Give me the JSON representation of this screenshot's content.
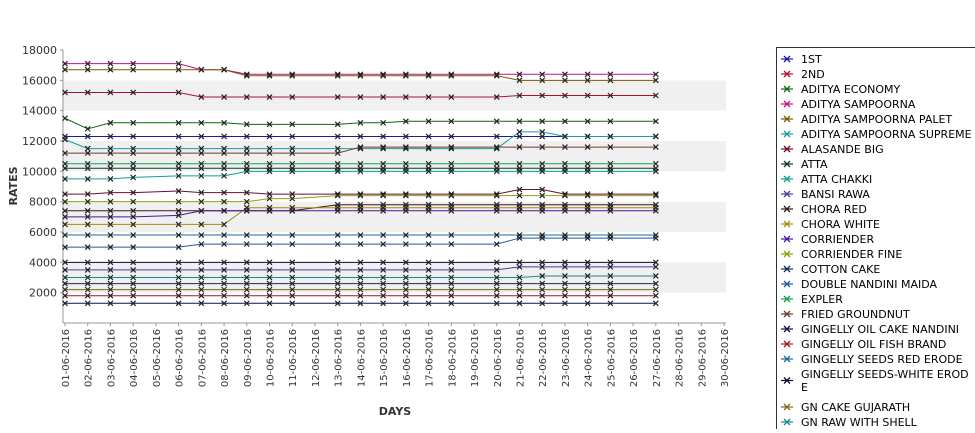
{
  "chart_data": {
    "type": "line",
    "title": "",
    "xlabel": "DAYS",
    "ylabel": "RATES",
    "ylim": [
      0,
      18000
    ],
    "yticks": [
      2000,
      4000,
      6000,
      8000,
      10000,
      12000,
      14000,
      16000,
      18000
    ],
    "grid": "alternating horizontal bands",
    "legend_position": "right",
    "x": [
      "01-06-2016",
      "02-06-2016",
      "03-06-2016",
      "04-06-2016",
      "05-06-2016",
      "06-06-2016",
      "07-06-2016",
      "08-06-2016",
      "09-06-2016",
      "10-06-2016",
      "11-06-2016",
      "12-06-2016",
      "13-06-2016",
      "14-06-2016",
      "15-06-2016",
      "16-06-2016",
      "17-06-2016",
      "18-06-2016",
      "19-06-2016",
      "20-06-2016",
      "21-06-2016",
      "22-06-2016",
      "23-06-2016",
      "24-06-2016",
      "25-06-2016",
      "26-06-2016",
      "27-06-2016",
      "28-06-2016",
      "29-06-2016",
      "30-06-2016"
    ],
    "series": [
      {
        "name": "1ST",
        "color": "#1a1aa8",
        "values": [
          12300,
          12300,
          12300,
          12300,
          null,
          12300,
          12300,
          12300,
          12300,
          12300,
          12300,
          null,
          12300,
          12300,
          12300,
          12300,
          12300,
          12300,
          null,
          12300,
          12300,
          12300,
          12300,
          12300,
          12300,
          null,
          12300,
          null,
          null,
          null
        ]
      },
      {
        "name": "2ND",
        "color": "#b01030",
        "values": [
          15200,
          15200,
          15200,
          15200,
          null,
          15200,
          14900,
          14900,
          14900,
          14900,
          14900,
          null,
          14900,
          14900,
          14900,
          14900,
          14900,
          14900,
          null,
          14900,
          15000,
          15000,
          15000,
          15000,
          15000,
          null,
          15000,
          null,
          null,
          null
        ]
      },
      {
        "name": "ADITYA ECONOMY",
        "color": "#0a6a0a",
        "values": [
          13500,
          12800,
          13200,
          13200,
          null,
          13200,
          13200,
          13200,
          13100,
          13100,
          13100,
          null,
          13100,
          13200,
          13200,
          13300,
          13300,
          13300,
          null,
          13300,
          13300,
          13300,
          13300,
          13300,
          13300,
          null,
          13300,
          null,
          null,
          null
        ]
      },
      {
        "name": "ADITYA SAMPOORNA",
        "color": "#c0108c",
        "values": [
          17100,
          17100,
          17100,
          17100,
          null,
          17100,
          16700,
          16700,
          16400,
          16400,
          16400,
          null,
          16400,
          16400,
          16400,
          16400,
          16400,
          16400,
          null,
          16400,
          16400,
          16400,
          16400,
          16400,
          16400,
          null,
          16400,
          null,
          null,
          null
        ]
      },
      {
        "name": "ADITYA SAMPOORNA PALET",
        "color": "#7a5a00",
        "values": [
          16700,
          16700,
          16700,
          16700,
          null,
          16700,
          16700,
          16700,
          16300,
          16300,
          16300,
          null,
          16300,
          16300,
          16300,
          16300,
          16300,
          16300,
          null,
          16300,
          16000,
          16000,
          16000,
          16000,
          16000,
          null,
          16000,
          null,
          null,
          null
        ]
      },
      {
        "name": "ADITYA SAMPOORNA SUPREME",
        "color": "#1e9aa0",
        "values": [
          12100,
          11500,
          11500,
          11500,
          null,
          11500,
          11500,
          11500,
          11500,
          11500,
          11500,
          null,
          11500,
          11500,
          11500,
          11500,
          11500,
          11500,
          null,
          11500,
          12600,
          12600,
          12300,
          12300,
          12300,
          null,
          12300,
          null,
          null,
          null
        ]
      },
      {
        "name": "ALASANDE BIG",
        "color": "#6a0a3a",
        "values": [
          8500,
          8500,
          8600,
          8600,
          null,
          8700,
          8600,
          8600,
          8600,
          8500,
          8500,
          null,
          8500,
          8500,
          8500,
          8500,
          8500,
          8500,
          null,
          8500,
          8800,
          8800,
          8500,
          8500,
          8500,
          null,
          8500,
          null,
          null,
          null
        ]
      },
      {
        "name": "ATTA",
        "color": "#0a3a2a",
        "values": [
          10200,
          10200,
          10200,
          10200,
          null,
          10200,
          10200,
          10200,
          10200,
          10200,
          10200,
          null,
          10200,
          10200,
          10200,
          10200,
          10200,
          10200,
          null,
          10200,
          10200,
          10200,
          10200,
          10200,
          10200,
          null,
          10200,
          null,
          null,
          null
        ]
      },
      {
        "name": "ATTA CHAKKI",
        "color": "#10a090",
        "values": [
          9500,
          9500,
          9500,
          9600,
          null,
          9700,
          9700,
          9700,
          10000,
          10000,
          10000,
          null,
          10000,
          10000,
          10000,
          10000,
          10000,
          10000,
          null,
          10000,
          10000,
          10000,
          10000,
          10000,
          10000,
          null,
          10000,
          null,
          null,
          null
        ]
      },
      {
        "name": "BANSI RAWA",
        "color": "#4a3aa0",
        "values": [
          3500,
          3500,
          3500,
          3500,
          null,
          3500,
          3500,
          3500,
          3500,
          3500,
          3500,
          null,
          3500,
          3500,
          3500,
          3500,
          3500,
          3500,
          null,
          3500,
          3700,
          3700,
          3700,
          3700,
          3700,
          null,
          3700,
          null,
          null,
          null
        ]
      },
      {
        "name": "CHORA RED",
        "color": "#3a1a1a",
        "values": [
          7400,
          7400,
          7400,
          7400,
          null,
          7400,
          7400,
          7400,
          7400,
          7400,
          7400,
          null,
          7800,
          7800,
          7800,
          7800,
          7800,
          7800,
          null,
          7800,
          7800,
          7800,
          7800,
          7800,
          7800,
          null,
          7800,
          null,
          null,
          null
        ]
      },
      {
        "name": "CHORA WHITE",
        "color": "#a08a10",
        "values": [
          6500,
          6500,
          6500,
          6500,
          null,
          6500,
          6500,
          6500,
          7600,
          7600,
          7600,
          null,
          7600,
          7600,
          7600,
          7600,
          7600,
          7600,
          null,
          7600,
          7600,
          7600,
          7600,
          7600,
          7600,
          null,
          7600,
          null,
          null,
          null
        ]
      },
      {
        "name": "CORRIENDER",
        "color": "#5010a0",
        "values": [
          7000,
          7000,
          7000,
          7000,
          null,
          7100,
          7400,
          7400,
          7400,
          7400,
          7400,
          null,
          7400,
          7400,
          7400,
          7400,
          7400,
          7400,
          null,
          7400,
          7400,
          7400,
          7400,
          7400,
          7400,
          null,
          7400,
          null,
          null,
          null
        ]
      },
      {
        "name": "CORRIENDER FINE",
        "color": "#8aa010",
        "values": [
          8000,
          8000,
          8000,
          8000,
          null,
          8000,
          8000,
          8000,
          8000,
          8200,
          8200,
          null,
          8400,
          8400,
          8400,
          8400,
          8400,
          8400,
          null,
          8400,
          8400,
          8400,
          8400,
          8400,
          8400,
          null,
          8400,
          null,
          null,
          null
        ]
      },
      {
        "name": "COTTON CAKE",
        "color": "#1a2a5a",
        "values": [
          2600,
          2600,
          2600,
          2600,
          null,
          2600,
          2600,
          2600,
          2600,
          2600,
          2600,
          null,
          2600,
          2600,
          2600,
          2600,
          2600,
          2600,
          null,
          2600,
          2600,
          2600,
          2600,
          2600,
          2600,
          null,
          2600,
          null,
          null,
          null
        ]
      },
      {
        "name": "DOUBLE NANDINI MAIDA",
        "color": "#1a5aa0",
        "values": [
          5000,
          5000,
          5000,
          5000,
          null,
          5000,
          5200,
          5200,
          5200,
          5200,
          5200,
          null,
          5200,
          5200,
          5200,
          5200,
          5200,
          5200,
          null,
          5200,
          5600,
          5600,
          5600,
          5600,
          5600,
          null,
          5600,
          null,
          null,
          null
        ]
      },
      {
        "name": "EXPLER",
        "color": "#10a050",
        "values": [
          10500,
          10500,
          10500,
          10500,
          null,
          10500,
          10500,
          10500,
          10500,
          10500,
          10500,
          null,
          10500,
          10500,
          10500,
          10500,
          10500,
          10500,
          null,
          10500,
          10500,
          10500,
          10500,
          10500,
          10500,
          null,
          10500,
          null,
          null,
          null
        ]
      },
      {
        "name": "FRIED GROUNDNUT",
        "color": "#6a3a2a",
        "values": [
          11200,
          11200,
          11200,
          11200,
          null,
          11200,
          11200,
          11200,
          11200,
          11200,
          11200,
          null,
          11200,
          11600,
          11600,
          11600,
          11600,
          11600,
          null,
          11600,
          11600,
          11600,
          11600,
          11600,
          11600,
          null,
          11600,
          null,
          null,
          null
        ]
      },
      {
        "name": "GINGELLY OIL CAKE NANDINI",
        "color": "#101050",
        "values": [
          1300,
          1300,
          1300,
          1300,
          null,
          1300,
          1300,
          1300,
          1300,
          1300,
          1300,
          null,
          1300,
          1300,
          1300,
          1300,
          1300,
          1300,
          null,
          1300,
          1300,
          1300,
          1300,
          1300,
          1300,
          null,
          1300,
          null,
          null,
          null
        ]
      },
      {
        "name": "GINGELLY OIL FISH BRAND",
        "color": "#a01a1a",
        "values": [
          1800,
          1800,
          1800,
          1800,
          null,
          1800,
          1800,
          1800,
          1800,
          1800,
          1800,
          null,
          1800,
          1800,
          1800,
          1800,
          1800,
          1800,
          null,
          1800,
          1800,
          1800,
          1800,
          1800,
          1800,
          null,
          1800,
          null,
          null,
          null
        ]
      },
      {
        "name": "GINGELLY SEEDS RED ERODE",
        "color": "#1a6a9a",
        "values": [
          5800,
          5800,
          5800,
          5800,
          null,
          5800,
          5800,
          5800,
          5800,
          5800,
          5800,
          null,
          5800,
          5800,
          5800,
          5800,
          5800,
          5800,
          null,
          5800,
          5800,
          5800,
          5800,
          5800,
          5800,
          null,
          5800,
          null,
          null,
          null
        ]
      },
      {
        "name": "GINGELLY SEEDS-WHITE ERODE",
        "color": "#0a0a2a",
        "values": [
          4000,
          4000,
          4000,
          4000,
          null,
          4000,
          4000,
          4000,
          4000,
          4000,
          4000,
          null,
          4000,
          4000,
          4000,
          4000,
          4000,
          4000,
          null,
          4000,
          4000,
          4000,
          4000,
          4000,
          4000,
          null,
          4000,
          null,
          null,
          null
        ]
      },
      {
        "name": "GN CAKE GUJARATH",
        "color": "#7a6a1a",
        "values": [
          2200,
          2200,
          2200,
          2200,
          null,
          2200,
          2200,
          2200,
          2200,
          2200,
          2200,
          null,
          2200,
          2200,
          2200,
          2200,
          2200,
          2200,
          null,
          2200,
          2200,
          2200,
          2200,
          2200,
          2200,
          null,
          2200,
          null,
          null,
          null
        ]
      },
      {
        "name": "GN RAW WITH SHELL",
        "color": "#1a8a8a",
        "values": [
          3000,
          3000,
          3000,
          3000,
          null,
          3000,
          3000,
          3000,
          3000,
          3000,
          3000,
          null,
          3000,
          3000,
          3000,
          3000,
          3000,
          3000,
          null,
          3000,
          3000,
          3100,
          3100,
          3100,
          3100,
          null,
          3100,
          null,
          null,
          null
        ]
      }
    ],
    "legend_display_labels": [
      "1ST",
      "2ND",
      "ADITYA ECONOMY",
      "ADITYA SAMPOORNA",
      "ADITYA SAMPOORNA PALET",
      "ADITYA SAMPOORNA SUPREME",
      "ALASANDE BIG",
      "ATTA",
      "ATTA CHAKKI",
      "BANSI RAWA",
      "CHORA RED",
      "CHORA WHITE",
      "CORRIENDER",
      "CORRIENDER FINE",
      "COTTON CAKE",
      "DOUBLE NANDINI MAIDA",
      "EXPLER",
      "FRIED GROUNDNUT",
      "GINGELLY OIL CAKE NANDINI",
      "GINGELLY OIL FISH BRAND",
      "GINGELLY SEEDS RED ERODE",
      "GINGELLY SEEDS-WHITE EROD\nE",
      "GN CAKE GUJARATH",
      "GN RAW WITH SHELL"
    ]
  }
}
